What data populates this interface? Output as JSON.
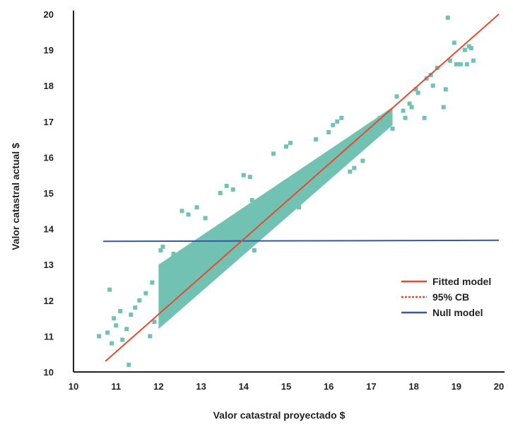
{
  "chart_data": {
    "type": "scatter",
    "title": "",
    "xlabel": "Valor catastral proyectado $",
    "ylabel": "Valor catastral actual $",
    "xlim": [
      10,
      20
    ],
    "ylim": [
      10,
      20
    ],
    "x_ticks": [
      "10",
      "11",
      "12",
      "13",
      "14",
      "15",
      "16",
      "17",
      "18",
      "19",
      "20"
    ],
    "y_ticks": [
      "10",
      "11",
      "12",
      "13",
      "14",
      "15",
      "16",
      "17",
      "18",
      "19",
      "20"
    ],
    "grid": false,
    "legend_position": "right",
    "legend": [
      {
        "name": "Fitted model",
        "color": "#e8492b",
        "style": "solid"
      },
      {
        "name": "95% CB",
        "color": "#e8492b",
        "style": "dashed"
      },
      {
        "name": "Null model",
        "color": "#3457a6",
        "style": "solid"
      }
    ],
    "scatter_color": "#72c2b4",
    "fitted_model": {
      "x": [
        10.75,
        20.0
      ],
      "y": [
        10.3,
        20.0
      ]
    },
    "null_model": {
      "x": [
        10.7,
        20.0
      ],
      "y": [
        13.65,
        13.68
      ]
    },
    "point_cloud": {
      "x": [
        12.0,
        17.5
      ],
      "y_lower": [
        11.2,
        16.9
      ],
      "y_upper": [
        13.0,
        17.4
      ]
    },
    "points": [
      [
        10.6,
        11.0
      ],
      [
        10.8,
        11.1
      ],
      [
        10.85,
        12.3
      ],
      [
        10.9,
        10.8
      ],
      [
        10.95,
        11.5
      ],
      [
        11.0,
        11.3
      ],
      [
        11.1,
        11.7
      ],
      [
        11.15,
        10.9
      ],
      [
        11.25,
        11.2
      ],
      [
        11.3,
        10.2
      ],
      [
        11.35,
        11.6
      ],
      [
        11.45,
        11.8
      ],
      [
        11.55,
        12.0
      ],
      [
        11.7,
        12.2
      ],
      [
        11.8,
        11.0
      ],
      [
        11.85,
        12.5
      ],
      [
        11.9,
        11.4
      ],
      [
        12.05,
        13.4
      ],
      [
        12.1,
        13.5
      ],
      [
        12.25,
        12.9
      ],
      [
        12.35,
        13.3
      ],
      [
        12.55,
        14.5
      ],
      [
        12.7,
        14.4
      ],
      [
        12.9,
        14.6
      ],
      [
        13.1,
        14.3
      ],
      [
        13.3,
        12.8
      ],
      [
        13.45,
        15.0
      ],
      [
        13.6,
        15.2
      ],
      [
        13.75,
        15.1
      ],
      [
        14.0,
        15.5
      ],
      [
        14.15,
        15.45
      ],
      [
        14.2,
        14.8
      ],
      [
        14.25,
        13.4
      ],
      [
        14.4,
        13.9
      ],
      [
        14.5,
        14.1
      ],
      [
        14.7,
        16.1
      ],
      [
        15.0,
        16.3
      ],
      [
        15.1,
        16.4
      ],
      [
        15.3,
        14.6
      ],
      [
        15.5,
        15.3
      ],
      [
        15.7,
        16.5
      ],
      [
        15.9,
        15.8
      ],
      [
        16.0,
        16.7
      ],
      [
        16.1,
        16.9
      ],
      [
        16.2,
        17.0
      ],
      [
        16.3,
        17.1
      ],
      [
        16.5,
        15.6
      ],
      [
        16.6,
        15.7
      ],
      [
        16.8,
        15.9
      ],
      [
        17.2,
        17.1
      ],
      [
        17.45,
        17.2
      ],
      [
        17.5,
        16.8
      ],
      [
        17.6,
        17.7
      ],
      [
        17.75,
        17.3
      ],
      [
        17.8,
        17.1
      ],
      [
        17.9,
        17.5
      ],
      [
        17.95,
        17.4
      ],
      [
        18.05,
        17.9
      ],
      [
        18.1,
        17.8
      ],
      [
        18.25,
        17.1
      ],
      [
        18.3,
        18.2
      ],
      [
        18.4,
        18.3
      ],
      [
        18.45,
        18.0
      ],
      [
        18.55,
        18.5
      ],
      [
        18.7,
        17.4
      ],
      [
        18.75,
        17.9
      ],
      [
        18.85,
        18.7
      ],
      [
        18.95,
        19.2
      ],
      [
        19.0,
        18.6
      ],
      [
        19.1,
        18.6
      ],
      [
        19.2,
        19.0
      ],
      [
        19.25,
        18.6
      ],
      [
        19.3,
        19.1
      ],
      [
        19.35,
        19.05
      ],
      [
        19.4,
        18.7
      ],
      [
        18.8,
        19.9
      ]
    ]
  }
}
